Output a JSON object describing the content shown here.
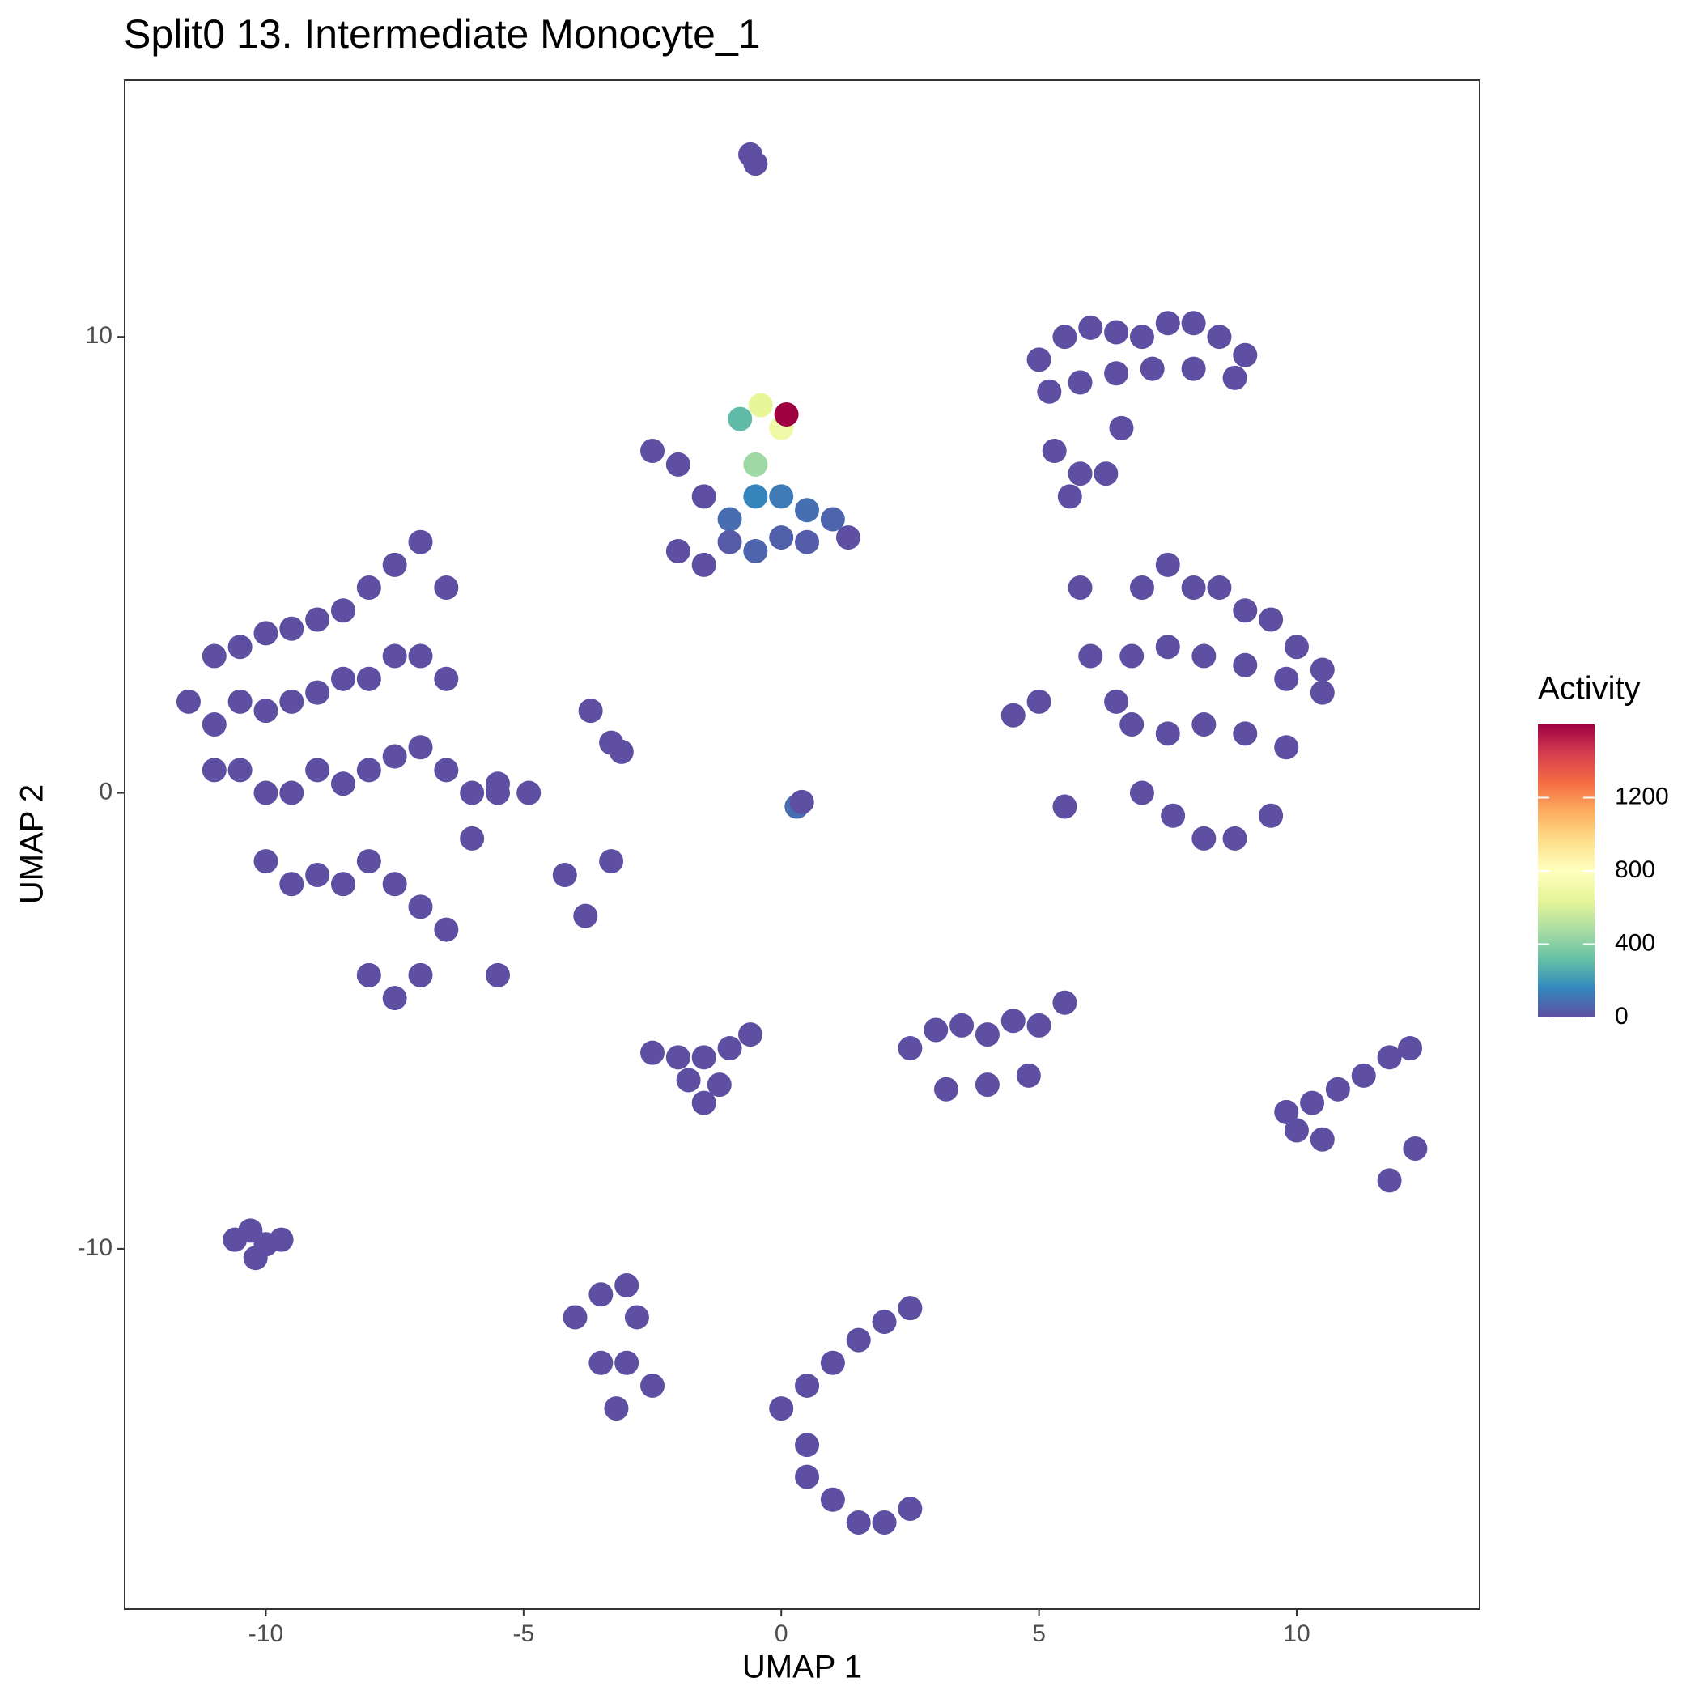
{
  "chart_data": {
    "type": "scatter",
    "title": "Split0 13. Intermediate Monocyte_1",
    "x_label": "UMAP 1",
    "y_label": "UMAP 2",
    "legend_title": "Activity",
    "xlim": [
      -12.74,
      13.55
    ],
    "ylim": [
      -17.9,
      15.63
    ],
    "xticks": [
      -10,
      -5,
      0,
      5,
      10
    ],
    "yticks": [
      -10,
      0,
      10
    ],
    "grid": false,
    "color_lim": [
      0,
      1600
    ],
    "color_ticks": [
      0,
      400,
      800,
      1200
    ],
    "colors": [
      "#5E4FA2",
      "#3288BD",
      "#66C2A5",
      "#ABDDA4",
      "#E6F598",
      "#FFFFBF",
      "#FEE08B",
      "#FDAE61",
      "#F46D43",
      "#D53E4F",
      "#9E0142"
    ],
    "x": [
      -11,
      -10.5,
      -10,
      -9.5,
      -9,
      -8.5,
      -8,
      -7.5,
      -7,
      -6.5,
      -11,
      -10.5,
      -10,
      -9.5,
      -9,
      -8.5,
      -8,
      -7.5,
      -7,
      -6.5,
      -10.5,
      -10,
      -9.5,
      -9,
      -8.5,
      -8,
      -7.5,
      -7,
      -6.5,
      -6,
      -10,
      -9.5,
      -9,
      -8.5,
      -8,
      -7.5,
      -7,
      -8,
      -7.5,
      -7,
      -6,
      -5.5,
      -6.5,
      -5.5,
      -11.5,
      -11,
      -0.6,
      -0.5,
      -2.5,
      -2,
      -1.5,
      -1,
      -0.5,
      0,
      0.5,
      1,
      1.3,
      -2,
      -1.5,
      -1,
      -0.5,
      0,
      0.5,
      -0.8,
      -0.4,
      0,
      0.1,
      -0.5,
      5,
      5.5,
      6,
      6.5,
      7,
      7.5,
      8,
      8.5,
      9,
      5.2,
      5.8,
      6.5,
      7.2,
      8,
      8.8,
      5.3,
      5.8,
      6.3,
      6.6,
      5.6,
      7,
      7.5,
      8,
      8.5,
      9,
      9.5,
      10,
      10.5,
      6.8,
      7.5,
      8.2,
      9,
      9.8,
      10.5,
      6.8,
      7.5,
      8.2,
      9,
      9.8,
      7,
      7.6,
      8.2,
      8.8,
      9.5,
      6,
      6.5,
      5.5,
      5,
      5.8,
      4.5,
      -3.3,
      -3.1,
      -3.7,
      0.3,
      0.4,
      -4.2,
      -3.8,
      -3.3,
      -5.5,
      -4.9,
      -2.5,
      -2,
      -1.5,
      -1,
      -0.6,
      -1.8,
      -1.2,
      -1.5,
      2.5,
      3,
      3.5,
      4,
      4.5,
      5,
      5.5,
      3.2,
      4,
      4.8,
      9.8,
      10.3,
      10.8,
      11.3,
      11.8,
      12.2,
      10,
      10.5,
      11.8,
      12.3,
      -10.6,
      -10.3,
      -10,
      -9.7,
      -10.2,
      -4,
      -3.5,
      -3,
      -2.8,
      -3.5,
      -3,
      -2.5,
      -3.2,
      0.5,
      1,
      1.5,
      2,
      2.5,
      0,
      0.5,
      0.5,
      1,
      1.5,
      2,
      2.5
    ],
    "values": [
      3,
      3.2,
      3.5,
      3.6,
      3.8,
      4,
      4.5,
      5,
      5.5,
      4.5,
      1.5,
      2,
      1.8,
      2,
      2.2,
      2.5,
      2.5,
      3,
      3,
      2.5,
      0.5,
      0,
      0,
      0.5,
      0.2,
      0.5,
      0.8,
      1,
      0.5,
      0,
      -1.5,
      -2,
      -1.8,
      -2,
      -1.5,
      -2,
      -2.5,
      -4,
      -4.5,
      -4,
      -1,
      0,
      -3,
      -4,
      2,
      0.5,
      14,
      13.8,
      7.5,
      7.2,
      6.5,
      6,
      6.5,
      6.5,
      6.2,
      6,
      5.6,
      5.3,
      5,
      5.5,
      5.3,
      5.6,
      5.5,
      8.2,
      8.5,
      8,
      8.3,
      7.2,
      9.5,
      10,
      10.2,
      10.1,
      10,
      10.3,
      10.3,
      10,
      9.6,
      8.8,
      9,
      9.2,
      9.3,
      9.3,
      9.1,
      7.5,
      7,
      7,
      8,
      6.5,
      4.5,
      5,
      4.5,
      4.5,
      4,
      3.8,
      3.2,
      2.7,
      3,
      3.2,
      3,
      2.8,
      2.5,
      2.2,
      1.5,
      1.3,
      1.5,
      1.3,
      1,
      0,
      -0.5,
      -1,
      -1,
      -0.5,
      3,
      2,
      -0.3,
      2,
      4.5,
      1.7,
      1.1,
      0.9,
      1.8,
      -0.3,
      -0.2,
      -1.8,
      -2.7,
      -1.5,
      0.2,
      0,
      -5.7,
      -5.8,
      -5.8,
      -5.6,
      -5.3,
      -6.3,
      -6.4,
      -6.8,
      -5.6,
      -5.2,
      -5.1,
      -5.3,
      -5,
      -5.1,
      -4.6,
      -6.5,
      -6.4,
      -6.2,
      -7,
      -6.8,
      -6.5,
      -6.2,
      -5.8,
      -5.6,
      -7.4,
      -7.6,
      -8.5,
      -7.8,
      -9.8,
      -9.6,
      -9.9,
      -9.8,
      -10.2,
      -11.5,
      -11,
      -10.8,
      -11.5,
      -12.5,
      -12.5,
      -13,
      -13.5,
      -13,
      -12.5,
      -12,
      -11.6,
      -11.3,
      -13.5,
      -14.3,
      -15,
      -15.5,
      -16,
      -16,
      -15.7
    ],
    "activity": [
      0,
      0,
      0,
      0,
      0,
      0,
      0,
      0,
      0,
      0,
      0,
      0,
      0,
      0,
      0,
      0,
      0,
      0,
      0,
      0,
      0,
      0,
      0,
      0,
      0,
      0,
      0,
      0,
      0,
      0,
      0,
      0,
      0,
      0,
      0,
      0,
      0,
      0,
      0,
      0,
      0,
      0,
      0,
      0,
      0,
      0,
      0,
      0,
      0,
      0,
      0,
      80,
      150,
      120,
      90,
      60,
      0,
      0,
      0,
      30,
      60,
      50,
      40,
      300,
      650,
      700,
      1600,
      450,
      0,
      0,
      0,
      0,
      0,
      0,
      0,
      0,
      0,
      0,
      0,
      0,
      0,
      0,
      0,
      0,
      0,
      0,
      0,
      0,
      0,
      0,
      0,
      0,
      0,
      0,
      0,
      0,
      0,
      0,
      0,
      0,
      0,
      0,
      0,
      0,
      0,
      0,
      0,
      0,
      0,
      0,
      0,
      0,
      0,
      0,
      0,
      0,
      0,
      0,
      0,
      0,
      0,
      80,
      0,
      0,
      0,
      0,
      0,
      0,
      0,
      0,
      0,
      0,
      0,
      0,
      0,
      0,
      0,
      0,
      0,
      0,
      0,
      0,
      0,
      0,
      0,
      0,
      0,
      0,
      0,
      0,
      0,
      0,
      0,
      0,
      0,
      0,
      0,
      0,
      0,
      0,
      0,
      0,
      0,
      0,
      0,
      0,
      0,
      0,
      0,
      0,
      0,
      0,
      0,
      0,
      0,
      0,
      0,
      0,
      0,
      0,
      0
    ]
  }
}
